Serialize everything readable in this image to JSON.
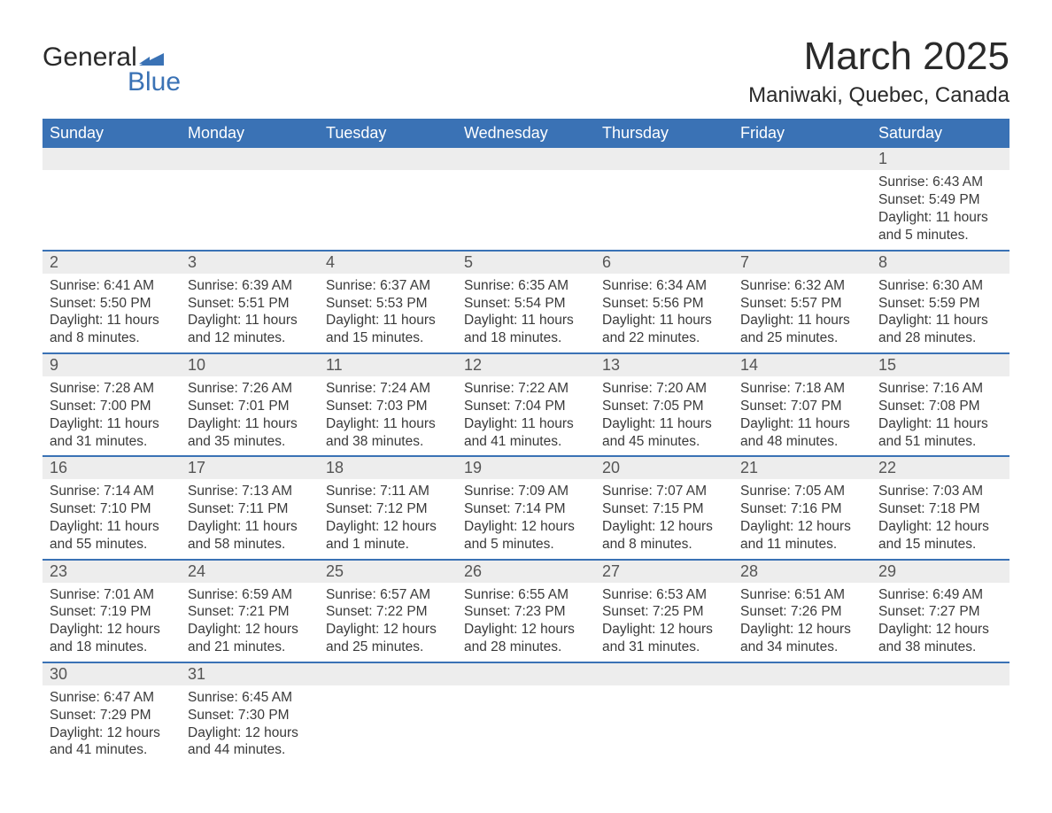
{
  "brand": {
    "word1": "General",
    "word2": "Blue",
    "mark_color": "#3a72b5",
    "text_color_dark": "#2a2a2a"
  },
  "title": {
    "month": "March 2025",
    "location": "Maniwaki, Quebec, Canada"
  },
  "calendar": {
    "header_bg": "#3a72b5",
    "header_fg": "#ffffff",
    "row_divider": "#3a72b5",
    "daynum_bg": "#ededed",
    "body_bg": "#ffffff",
    "text_color": "#3a3a3a",
    "columns": [
      "Sunday",
      "Monday",
      "Tuesday",
      "Wednesday",
      "Thursday",
      "Friday",
      "Saturday"
    ],
    "weeks": [
      [
        null,
        null,
        null,
        null,
        null,
        null,
        {
          "n": "1",
          "sr": "Sunrise: 6:43 AM",
          "ss": "Sunset: 5:49 PM",
          "dl": "Daylight: 11 hours and 5 minutes."
        }
      ],
      [
        {
          "n": "2",
          "sr": "Sunrise: 6:41 AM",
          "ss": "Sunset: 5:50 PM",
          "dl": "Daylight: 11 hours and 8 minutes."
        },
        {
          "n": "3",
          "sr": "Sunrise: 6:39 AM",
          "ss": "Sunset: 5:51 PM",
          "dl": "Daylight: 11 hours and 12 minutes."
        },
        {
          "n": "4",
          "sr": "Sunrise: 6:37 AM",
          "ss": "Sunset: 5:53 PM",
          "dl": "Daylight: 11 hours and 15 minutes."
        },
        {
          "n": "5",
          "sr": "Sunrise: 6:35 AM",
          "ss": "Sunset: 5:54 PM",
          "dl": "Daylight: 11 hours and 18 minutes."
        },
        {
          "n": "6",
          "sr": "Sunrise: 6:34 AM",
          "ss": "Sunset: 5:56 PM",
          "dl": "Daylight: 11 hours and 22 minutes."
        },
        {
          "n": "7",
          "sr": "Sunrise: 6:32 AM",
          "ss": "Sunset: 5:57 PM",
          "dl": "Daylight: 11 hours and 25 minutes."
        },
        {
          "n": "8",
          "sr": "Sunrise: 6:30 AM",
          "ss": "Sunset: 5:59 PM",
          "dl": "Daylight: 11 hours and 28 minutes."
        }
      ],
      [
        {
          "n": "9",
          "sr": "Sunrise: 7:28 AM",
          "ss": "Sunset: 7:00 PM",
          "dl": "Daylight: 11 hours and 31 minutes."
        },
        {
          "n": "10",
          "sr": "Sunrise: 7:26 AM",
          "ss": "Sunset: 7:01 PM",
          "dl": "Daylight: 11 hours and 35 minutes."
        },
        {
          "n": "11",
          "sr": "Sunrise: 7:24 AM",
          "ss": "Sunset: 7:03 PM",
          "dl": "Daylight: 11 hours and 38 minutes."
        },
        {
          "n": "12",
          "sr": "Sunrise: 7:22 AM",
          "ss": "Sunset: 7:04 PM",
          "dl": "Daylight: 11 hours and 41 minutes."
        },
        {
          "n": "13",
          "sr": "Sunrise: 7:20 AM",
          "ss": "Sunset: 7:05 PM",
          "dl": "Daylight: 11 hours and 45 minutes."
        },
        {
          "n": "14",
          "sr": "Sunrise: 7:18 AM",
          "ss": "Sunset: 7:07 PM",
          "dl": "Daylight: 11 hours and 48 minutes."
        },
        {
          "n": "15",
          "sr": "Sunrise: 7:16 AM",
          "ss": "Sunset: 7:08 PM",
          "dl": "Daylight: 11 hours and 51 minutes."
        }
      ],
      [
        {
          "n": "16",
          "sr": "Sunrise: 7:14 AM",
          "ss": "Sunset: 7:10 PM",
          "dl": "Daylight: 11 hours and 55 minutes."
        },
        {
          "n": "17",
          "sr": "Sunrise: 7:13 AM",
          "ss": "Sunset: 7:11 PM",
          "dl": "Daylight: 11 hours and 58 minutes."
        },
        {
          "n": "18",
          "sr": "Sunrise: 7:11 AM",
          "ss": "Sunset: 7:12 PM",
          "dl": "Daylight: 12 hours and 1 minute."
        },
        {
          "n": "19",
          "sr": "Sunrise: 7:09 AM",
          "ss": "Sunset: 7:14 PM",
          "dl": "Daylight: 12 hours and 5 minutes."
        },
        {
          "n": "20",
          "sr": "Sunrise: 7:07 AM",
          "ss": "Sunset: 7:15 PM",
          "dl": "Daylight: 12 hours and 8 minutes."
        },
        {
          "n": "21",
          "sr": "Sunrise: 7:05 AM",
          "ss": "Sunset: 7:16 PM",
          "dl": "Daylight: 12 hours and 11 minutes."
        },
        {
          "n": "22",
          "sr": "Sunrise: 7:03 AM",
          "ss": "Sunset: 7:18 PM",
          "dl": "Daylight: 12 hours and 15 minutes."
        }
      ],
      [
        {
          "n": "23",
          "sr": "Sunrise: 7:01 AM",
          "ss": "Sunset: 7:19 PM",
          "dl": "Daylight: 12 hours and 18 minutes."
        },
        {
          "n": "24",
          "sr": "Sunrise: 6:59 AM",
          "ss": "Sunset: 7:21 PM",
          "dl": "Daylight: 12 hours and 21 minutes."
        },
        {
          "n": "25",
          "sr": "Sunrise: 6:57 AM",
          "ss": "Sunset: 7:22 PM",
          "dl": "Daylight: 12 hours and 25 minutes."
        },
        {
          "n": "26",
          "sr": "Sunrise: 6:55 AM",
          "ss": "Sunset: 7:23 PM",
          "dl": "Daylight: 12 hours and 28 minutes."
        },
        {
          "n": "27",
          "sr": "Sunrise: 6:53 AM",
          "ss": "Sunset: 7:25 PM",
          "dl": "Daylight: 12 hours and 31 minutes."
        },
        {
          "n": "28",
          "sr": "Sunrise: 6:51 AM",
          "ss": "Sunset: 7:26 PM",
          "dl": "Daylight: 12 hours and 34 minutes."
        },
        {
          "n": "29",
          "sr": "Sunrise: 6:49 AM",
          "ss": "Sunset: 7:27 PM",
          "dl": "Daylight: 12 hours and 38 minutes."
        }
      ],
      [
        {
          "n": "30",
          "sr": "Sunrise: 6:47 AM",
          "ss": "Sunset: 7:29 PM",
          "dl": "Daylight: 12 hours and 41 minutes."
        },
        {
          "n": "31",
          "sr": "Sunrise: 6:45 AM",
          "ss": "Sunset: 7:30 PM",
          "dl": "Daylight: 12 hours and 44 minutes."
        },
        null,
        null,
        null,
        null,
        null
      ]
    ]
  }
}
